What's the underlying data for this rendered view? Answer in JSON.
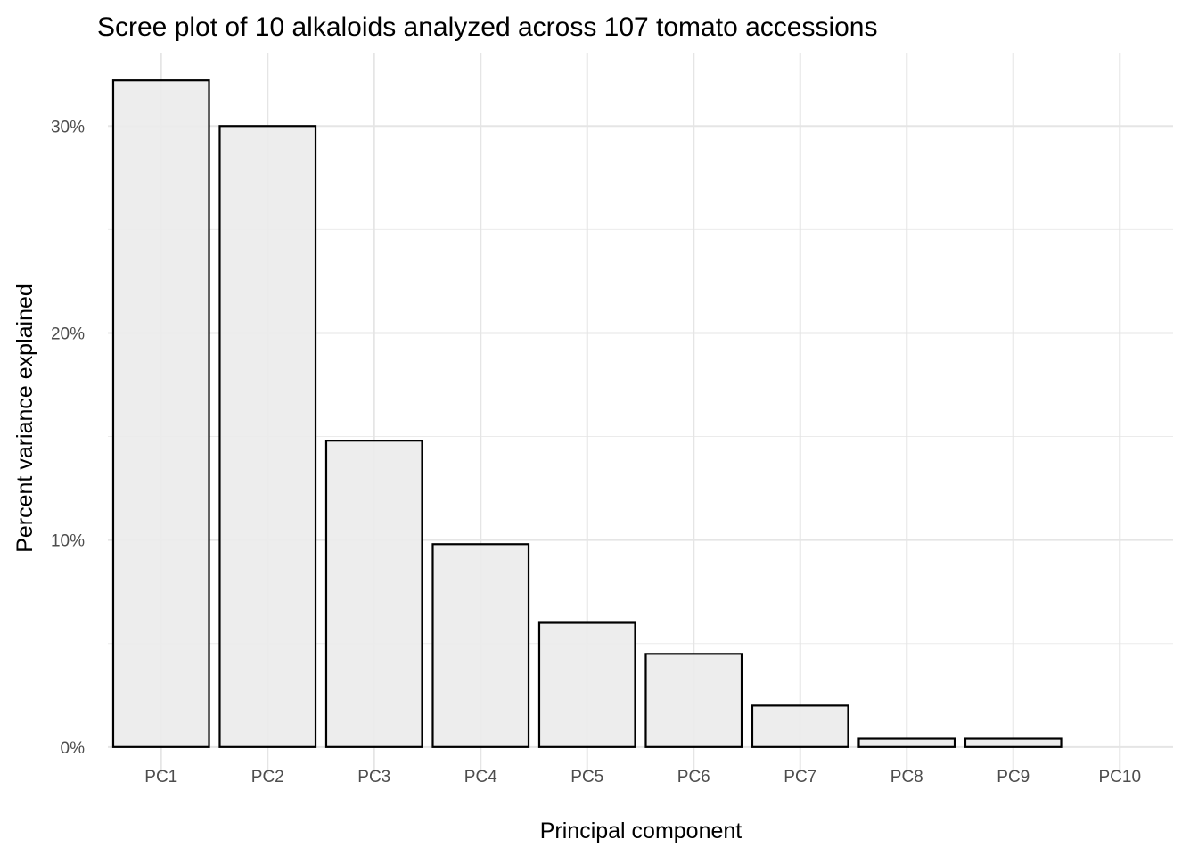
{
  "chart_data": {
    "type": "bar",
    "title": "Scree plot of 10 alkaloids analyzed across 107 tomato accessions",
    "xlabel": "Principal component",
    "ylabel": "Percent variance explained",
    "categories": [
      "PC1",
      "PC2",
      "PC3",
      "PC4",
      "PC5",
      "PC6",
      "PC7",
      "PC8",
      "PC9",
      "PC10"
    ],
    "values": [
      32.2,
      30.0,
      14.8,
      9.8,
      6.0,
      4.5,
      2.0,
      0.4,
      0.4,
      0.0
    ],
    "ylim": [
      -1.3,
      33.5
    ],
    "yticks": [
      0,
      10,
      20,
      30
    ],
    "ytick_labels": [
      "0%",
      "10%",
      "20%",
      "30%"
    ],
    "grid": true,
    "bar_fill": "#ebebeb",
    "bar_stroke": "#000000"
  }
}
